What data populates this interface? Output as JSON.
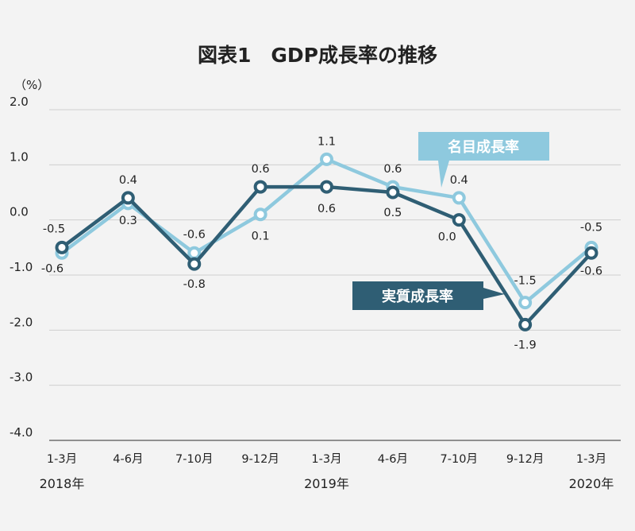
{
  "chart_data": {
    "type": "line",
    "title": "図表1　GDP成長率の推移",
    "ylabel": "（%）",
    "xlabel": "",
    "ylim": [
      -4.0,
      2.0
    ],
    "yticks": [
      "2.0",
      "1.0",
      "0.0",
      "-1.0",
      "-2.0",
      "-3.0",
      "-4.0"
    ],
    "ytick_values": [
      2.0,
      1.0,
      0.0,
      -1.0,
      -2.0,
      -3.0,
      -4.0
    ],
    "grid": true,
    "categories": [
      "1-3月",
      "4-6月",
      "7-10月",
      "9-12月",
      "1-3月",
      "4-6月",
      "7-10月",
      "9-12月",
      "1-3月"
    ],
    "years": [
      {
        "label": "2018年",
        "index": 0
      },
      {
        "label": "2019年",
        "index": 4
      },
      {
        "label": "2020年",
        "index": 8
      }
    ],
    "series": [
      {
        "name": "名目成長率",
        "color": "#8ec9de",
        "values": [
          -0.6,
          0.3,
          -0.6,
          0.1,
          1.1,
          0.6,
          0.4,
          -1.5,
          -0.5
        ],
        "labels": [
          "-0.6",
          "0.3",
          "-0.6",
          "0.1",
          "1.1",
          "0.6",
          "0.4",
          "-1.5",
          "-0.5"
        ]
      },
      {
        "name": "実質成長率",
        "color": "#2f5e74",
        "values": [
          -0.5,
          0.4,
          -0.8,
          0.6,
          0.6,
          0.5,
          0.0,
          -1.9,
          -0.6
        ],
        "labels": [
          "-0.5",
          "0.4",
          "-0.8",
          "0.6",
          "0.6",
          "0.5",
          "0.0",
          "-1.9",
          "-0.6"
        ]
      }
    ]
  }
}
